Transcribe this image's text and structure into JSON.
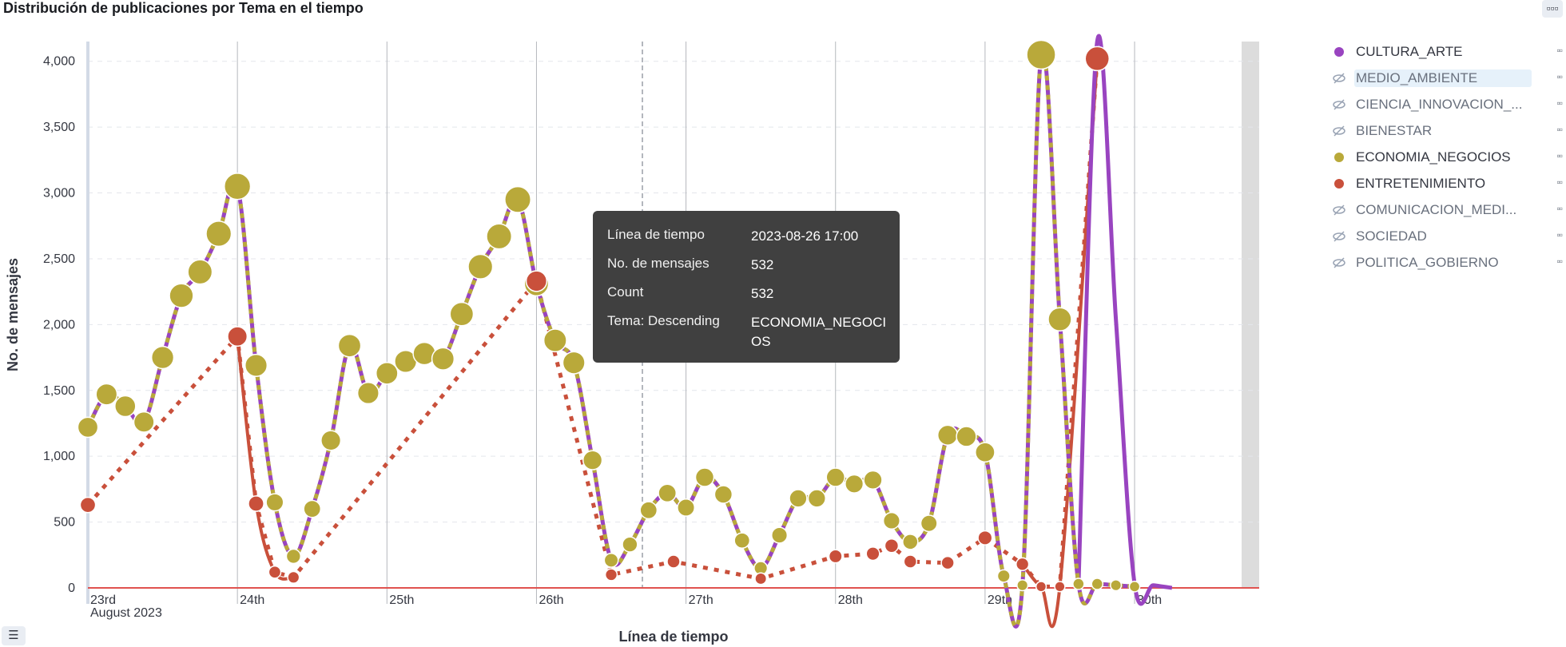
{
  "title": "Distribución de publicaciones por Tema en el tiempo",
  "chart_data": {
    "type": "line",
    "title": "Distribución de publicaciones por Tema en el tiempo",
    "xlabel": "Línea de tiempo",
    "ylabel": "No. de mensajes",
    "ylim": [
      0,
      4150
    ],
    "yticks": [
      0,
      500,
      1000,
      1500,
      2000,
      2500,
      3000,
      3500,
      4000
    ],
    "ytick_labels": [
      "0",
      "500",
      "1,000",
      "1,500",
      "2,000",
      "2,500",
      "3,000",
      "3,500",
      "4,000"
    ],
    "xlim": [
      "2023-08-23 00:00",
      "2023-08-30 20:00"
    ],
    "xticks": [
      {
        "label": "23rd",
        "sublabel": "August 2023",
        "t": "2023-08-23 00:00"
      },
      {
        "label": "24th",
        "t": "2023-08-24 00:00"
      },
      {
        "label": "25th",
        "t": "2023-08-25 00:00"
      },
      {
        "label": "26th",
        "t": "2023-08-26 00:00"
      },
      {
        "label": "27th",
        "t": "2023-08-27 00:00"
      },
      {
        "label": "28th",
        "t": "2023-08-28 00:00"
      },
      {
        "label": "29th",
        "t": "2023-08-29 00:00"
      },
      {
        "label": "30th",
        "t": "2023-08-30 00:00"
      }
    ],
    "cursor_time": "2023-08-26 17:00",
    "grid": true,
    "legend_position": "right",
    "series": [
      {
        "name": "ECONOMIA_NEGOCIOS",
        "color": "#b9a93a",
        "values": [
          [
            "2023-08-23 00:00",
            1220
          ],
          [
            "2023-08-23 03:00",
            1470
          ],
          [
            "2023-08-23 06:00",
            1380
          ],
          [
            "2023-08-23 09:00",
            1260
          ],
          [
            "2023-08-23 12:00",
            1750
          ],
          [
            "2023-08-23 15:00",
            2220
          ],
          [
            "2023-08-23 18:00",
            2400
          ],
          [
            "2023-08-23 21:00",
            2690
          ],
          [
            "2023-08-24 00:00",
            3050
          ],
          [
            "2023-08-24 03:00",
            1690
          ],
          [
            "2023-08-24 06:00",
            650
          ],
          [
            "2023-08-24 09:00",
            240
          ],
          [
            "2023-08-24 12:00",
            600
          ],
          [
            "2023-08-24 15:00",
            1120
          ],
          [
            "2023-08-24 18:00",
            1840
          ],
          [
            "2023-08-24 21:00",
            1480
          ],
          [
            "2023-08-25 00:00",
            1630
          ],
          [
            "2023-08-25 03:00",
            1720
          ],
          [
            "2023-08-25 06:00",
            1780
          ],
          [
            "2023-08-25 09:00",
            1740
          ],
          [
            "2023-08-25 12:00",
            2080
          ],
          [
            "2023-08-25 15:00",
            2440
          ],
          [
            "2023-08-25 18:00",
            2670
          ],
          [
            "2023-08-25 21:00",
            2950
          ],
          [
            "2023-08-26 00:00",
            2310
          ],
          [
            "2023-08-26 03:00",
            1880
          ],
          [
            "2023-08-26 06:00",
            1710
          ],
          [
            "2023-08-26 09:00",
            970
          ],
          [
            "2023-08-26 12:00",
            210
          ],
          [
            "2023-08-26 15:00",
            330
          ],
          [
            "2023-08-26 18:00",
            590
          ],
          [
            "2023-08-26 21:00",
            720
          ],
          [
            "2023-08-27 00:00",
            610
          ],
          [
            "2023-08-27 03:00",
            840
          ],
          [
            "2023-08-27 06:00",
            710
          ],
          [
            "2023-08-27 09:00",
            360
          ],
          [
            "2023-08-27 12:00",
            150
          ],
          [
            "2023-08-27 15:00",
            400
          ],
          [
            "2023-08-27 18:00",
            680
          ],
          [
            "2023-08-27 21:00",
            680
          ],
          [
            "2023-08-28 00:00",
            840
          ],
          [
            "2023-08-28 03:00",
            790
          ],
          [
            "2023-08-28 06:00",
            820
          ],
          [
            "2023-08-28 09:00",
            510
          ],
          [
            "2023-08-28 12:00",
            350
          ],
          [
            "2023-08-28 15:00",
            490
          ],
          [
            "2023-08-28 18:00",
            1160
          ],
          [
            "2023-08-28 21:00",
            1150
          ],
          [
            "2023-08-29 00:00",
            1030
          ],
          [
            "2023-08-29 03:00",
            90
          ],
          [
            "2023-08-29 06:00",
            20
          ],
          [
            "2023-08-29 09:00",
            4050
          ],
          [
            "2023-08-29 12:00",
            2040
          ],
          [
            "2023-08-29 15:00",
            30
          ],
          [
            "2023-08-29 18:00",
            30
          ],
          [
            "2023-08-29 21:00",
            20
          ],
          [
            "2023-08-30 00:00",
            10
          ]
        ]
      },
      {
        "name": "ENTRETENIMIENTO",
        "color": "#c9503b",
        "values": [
          [
            "2023-08-23 00:00",
            630
          ],
          [
            "2023-08-24 00:00",
            1910
          ],
          [
            "2023-08-24 03:00",
            640
          ],
          [
            "2023-08-24 06:00",
            120
          ],
          [
            "2023-08-24 09:00",
            80
          ],
          [
            "2023-08-26 00:00",
            2330
          ],
          [
            "2023-08-26 12:00",
            100
          ],
          [
            "2023-08-26 22:00",
            200
          ],
          [
            "2023-08-27 12:00",
            70
          ],
          [
            "2023-08-28 00:00",
            240
          ],
          [
            "2023-08-28 06:00",
            260
          ],
          [
            "2023-08-28 09:00",
            320
          ],
          [
            "2023-08-28 12:00",
            200
          ],
          [
            "2023-08-28 18:00",
            190
          ],
          [
            "2023-08-29 00:00",
            380
          ],
          [
            "2023-08-29 06:00",
            180
          ],
          [
            "2023-08-29 09:00",
            10
          ],
          [
            "2023-08-29 12:00",
            10
          ],
          [
            "2023-08-29 18:00",
            4020
          ]
        ]
      },
      {
        "name": "CULTURA_ARTE",
        "color": "#9944c0",
        "values": [
          [
            "2023-08-29 15:00",
            30
          ],
          [
            "2023-08-29 18:00",
            4150
          ],
          [
            "2023-08-29 21:00",
            2040
          ],
          [
            "2023-08-30 00:00",
            30
          ],
          [
            "2023-08-30 03:00",
            20
          ],
          [
            "2023-08-30 06:00",
            0
          ]
        ]
      }
    ]
  },
  "legend": [
    {
      "label": "CULTURA_ARTE",
      "visible": true,
      "color": "#9944c0",
      "selected": false
    },
    {
      "label": "MEDIO_AMBIENTE",
      "visible": false,
      "selected": true
    },
    {
      "label": "CIENCIA_INNOVACION_...",
      "visible": false,
      "selected": false
    },
    {
      "label": "BIENESTAR",
      "visible": false,
      "selected": false
    },
    {
      "label": "ECONOMIA_NEGOCIOS",
      "visible": true,
      "color": "#b9a93a",
      "selected": false
    },
    {
      "label": "ENTRETENIMIENTO",
      "visible": true,
      "color": "#c9503b",
      "selected": false
    },
    {
      "label": "COMUNICACION_MEDI...",
      "visible": false,
      "selected": false
    },
    {
      "label": "SOCIEDAD",
      "visible": false,
      "selected": false
    },
    {
      "label": "POLITICA_GOBIERNO",
      "visible": false,
      "selected": false
    }
  ],
  "tooltip": {
    "rows": [
      {
        "key": "Línea de tiempo",
        "value": "2023-08-26 17:00"
      },
      {
        "key": "No. de mensajes",
        "value": "532"
      },
      {
        "key": "Count",
        "value": "532"
      },
      {
        "key": "Tema: Descending",
        "value": "ECONOMIA_NEGOCIOS"
      }
    ]
  },
  "icons": {
    "top_right": "panel-options-icon",
    "bottom_left": "legend-toggle-icon",
    "legend_hidden": "eye-closed-icon",
    "legend_menu": "item-menu-icon"
  }
}
